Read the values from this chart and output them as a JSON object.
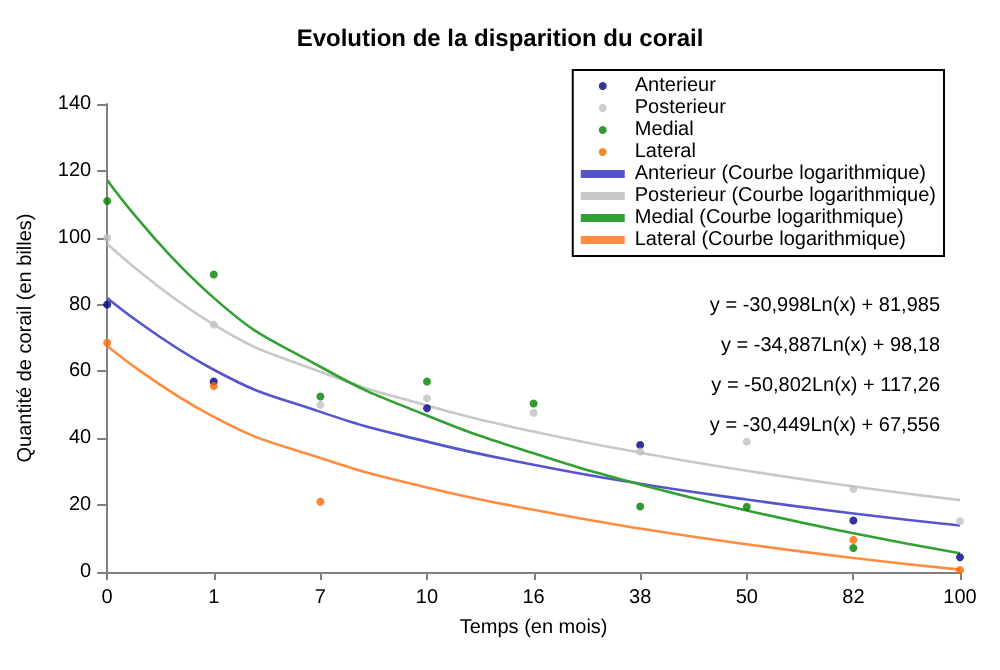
{
  "chart_data": {
    "type": "scatter",
    "title": "Evolution de la disparition du corail",
    "xlabel": "Temps (en mois)",
    "ylabel": "Quantité de corail (en billes)",
    "categories": [
      "0",
      "1",
      "7",
      "10",
      "16",
      "38",
      "50",
      "82",
      "100"
    ],
    "ylim": [
      0,
      140
    ],
    "yticks": [
      0,
      20,
      40,
      60,
      80,
      100,
      120,
      140
    ],
    "grid": false,
    "legend": "top right",
    "marker": "circle",
    "series": [
      {
        "name": "Anterieur",
        "color": "#000080",
        "values": [
          80,
          57,
          null,
          49,
          null,
          38,
          null,
          15.4,
          4.4
        ]
      },
      {
        "name": "Posterieur",
        "color": "#c0c0c0",
        "values": [
          100,
          74,
          50,
          52,
          47.6,
          36,
          39,
          24.8,
          15.2
        ]
      },
      {
        "name": "Medial",
        "color": "#008000",
        "values": [
          111,
          89,
          52.5,
          57,
          50.4,
          19.6,
          19.5,
          7.2,
          null
        ]
      },
      {
        "name": "Lateral",
        "color": "#ff6600",
        "values": [
          68.6,
          55.6,
          21,
          null,
          null,
          null,
          null,
          9.6,
          0.6
        ]
      },
      {
        "name": "Anterieur (Courbe logarithmique)",
        "type": "line",
        "marker": "none",
        "line_style": "solid",
        "color": "#5555cc",
        "values": [
          82,
          60.5,
          47.9,
          39,
          32.1,
          26.4,
          21.7,
          17.5,
          13.9
        ]
      },
      {
        "name": "Posterieur (Courbe logarithmique)",
        "type": "line",
        "marker": "none",
        "line_style": "solid",
        "color": "#c8c8c8",
        "values": [
          98.2,
          74,
          59.9,
          49.8,
          42,
          35.7,
          30.3,
          25.6,
          21.5
        ]
      },
      {
        "name": "Medial (Courbe logarithmique)",
        "type": "line",
        "marker": "none",
        "line_style": "solid",
        "color": "#33a033",
        "values": [
          117.3,
          82,
          61.4,
          46.8,
          35.5,
          26.2,
          18.4,
          11.6,
          5.6
        ]
      },
      {
        "name": "Lateral (Courbe logarithmique)",
        "type": "line",
        "marker": "none",
        "line_style": "solid",
        "color": "#ff8c40",
        "values": [
          67.6,
          46.4,
          34.1,
          25.3,
          18.6,
          13,
          8.3,
          4.2,
          0.7
        ]
      }
    ],
    "annotations": [
      "y = -30,998Ln(x) + 81,985",
      "y = -34,887Ln(x) + 98,18",
      "y = -50,802Ln(x) + 117,26",
      "y = -30,449Ln(x) + 67,556"
    ]
  }
}
